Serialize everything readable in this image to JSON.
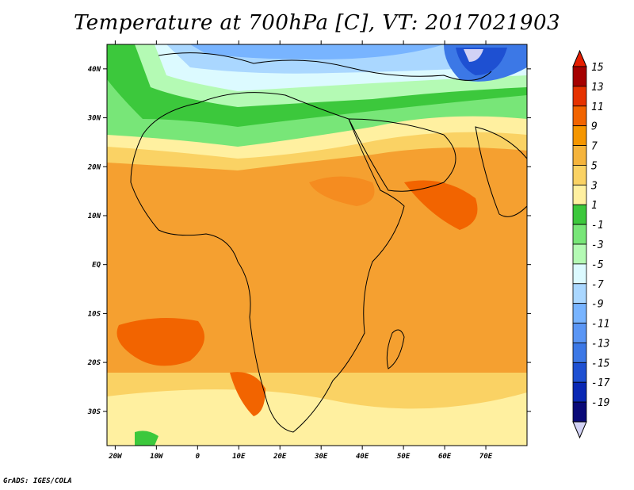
{
  "title": "Temperature at 700hPa [C], VT: 2017021903",
  "credit": "GrADS: IGES/COLA",
  "map": {
    "lat_ticks": [
      "40N",
      "30N",
      "20N",
      "10N",
      "EQ",
      "10S",
      "20S",
      "30S"
    ],
    "lat_values": [
      40,
      30,
      20,
      10,
      0,
      -10,
      -20,
      -30
    ],
    "lon_ticks": [
      "20W",
      "10W",
      "0",
      "10E",
      "20E",
      "30E",
      "40E",
      "50E",
      "60E",
      "70E"
    ],
    "lon_values": [
      -20,
      -10,
      0,
      10,
      20,
      30,
      40,
      50,
      60,
      70
    ],
    "lon_range": [
      -22,
      80
    ],
    "lat_range": [
      -37,
      45
    ]
  },
  "colorbar": {
    "labels": [
      "15",
      "13",
      "11",
      "9",
      "7",
      "5",
      "3",
      "1",
      "-1",
      "-3",
      "-5",
      "-7",
      "-9",
      "-11",
      "-13",
      "-15",
      "-17",
      "-19"
    ],
    "colors": [
      "#a50000",
      "#e63200",
      "#f26400",
      "#f59600",
      "#f5b43c",
      "#fad264",
      "#fff0a0",
      "#3cc83c",
      "#78e678",
      "#b4fab4",
      "#dcfaff",
      "#aad7ff",
      "#78b4ff",
      "#5a96f5",
      "#3c78e6",
      "#1e50d2",
      "#0a28b4",
      "#0a0a78"
    ],
    "top_color": "#e61e00",
    "bottom_color": "#d2d2f5"
  }
}
